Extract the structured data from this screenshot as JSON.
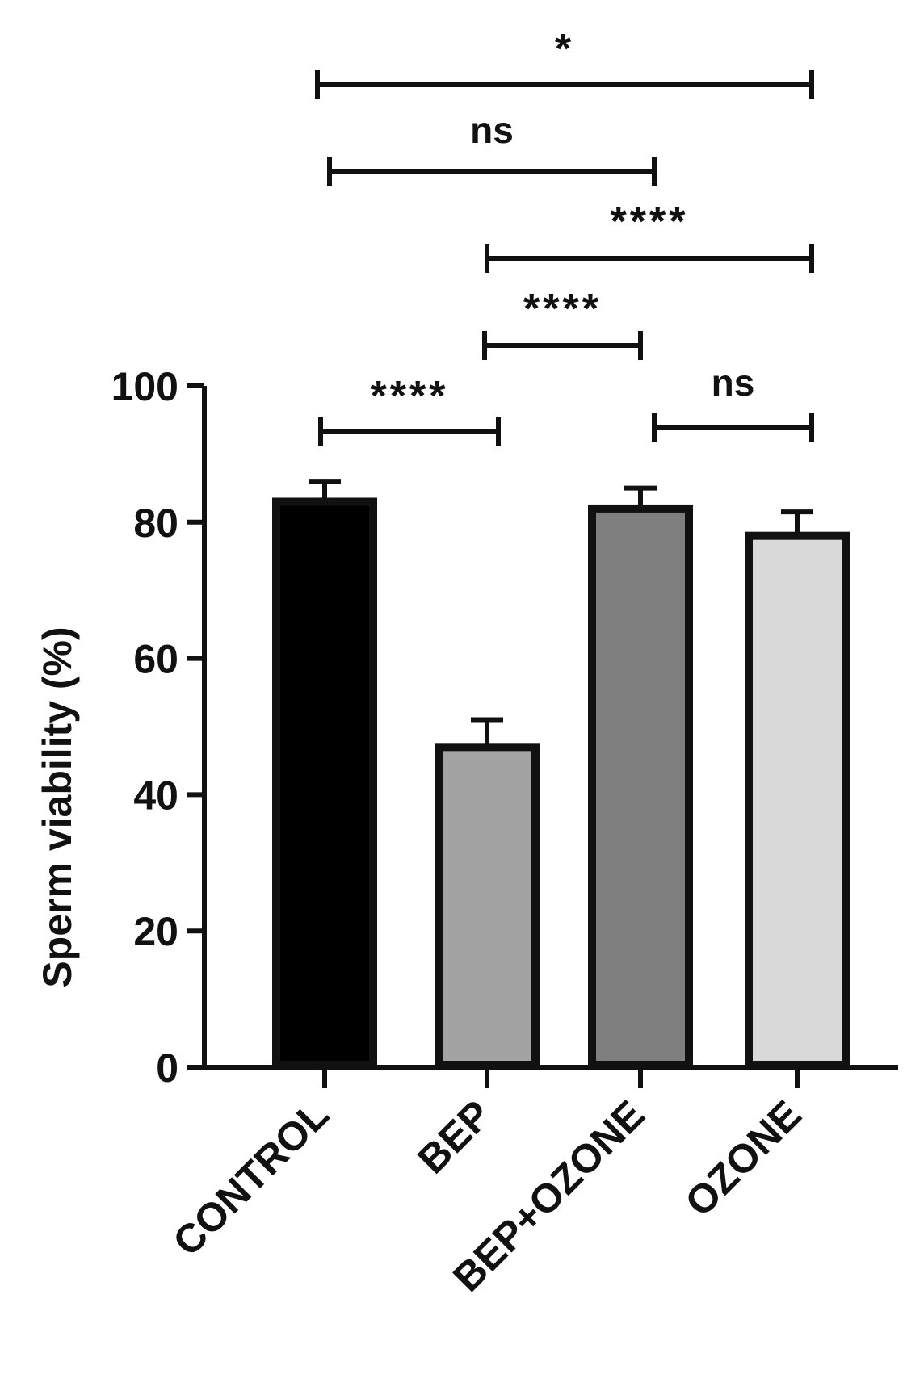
{
  "chart_data": {
    "type": "bar",
    "title": "",
    "xlabel": "",
    "ylabel": "Sperm viability (%)",
    "ylim": [
      0,
      100
    ],
    "yticks": [
      0,
      20,
      40,
      60,
      80,
      100
    ],
    "grid": false,
    "legend": "none",
    "categories": [
      "CONTROL",
      "BEP",
      "BEP+OZONE",
      "OZONE"
    ],
    "values": [
      83,
      47,
      82,
      78
    ],
    "errors": [
      3,
      4,
      3,
      3.5
    ],
    "colors": [
      "#000000",
      "#a3a3a3",
      "#7f7f7f",
      "#d9d9d9"
    ],
    "significance": [
      {
        "from": "CONTROL",
        "to": "OZONE",
        "label": "*"
      },
      {
        "from": "CONTROL",
        "to": "BEP+OZONE",
        "label": "ns"
      },
      {
        "from": "BEP",
        "to": "OZONE",
        "label": "****"
      },
      {
        "from": "BEP",
        "to": "BEP+OZONE",
        "label": "****"
      },
      {
        "from": "CONTROL",
        "to": "BEP",
        "label": "****"
      },
      {
        "from": "BEP+OZONE",
        "to": "OZONE",
        "label": "ns"
      }
    ]
  }
}
